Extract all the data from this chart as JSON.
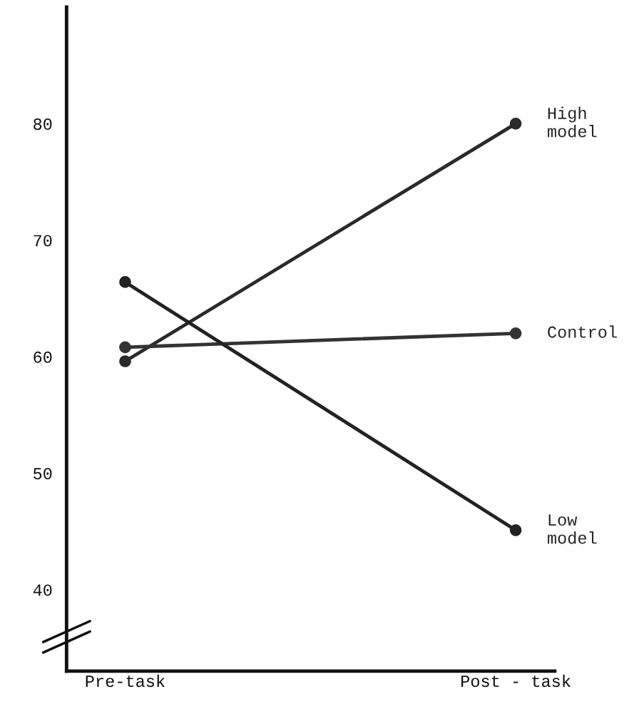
{
  "chart_data": {
    "type": "line",
    "categories": [
      "Pre-task",
      "Post - task"
    ],
    "series": [
      {
        "name": "High\nmodel",
        "color": "#2a2a2a",
        "values": [
          59.6,
          80.0
        ]
      },
      {
        "name": "Control",
        "color": "#333333",
        "values": [
          60.8,
          62.0
        ]
      },
      {
        "name": "Low\nmodel",
        "color": "#222222",
        "values": [
          66.4,
          45.1
        ]
      }
    ],
    "ylim": [
      33,
      90
    ],
    "yticks": [
      40,
      50,
      60,
      70,
      80
    ],
    "grid": false,
    "legend": false,
    "marker": "circle",
    "line_style": "solid"
  }
}
